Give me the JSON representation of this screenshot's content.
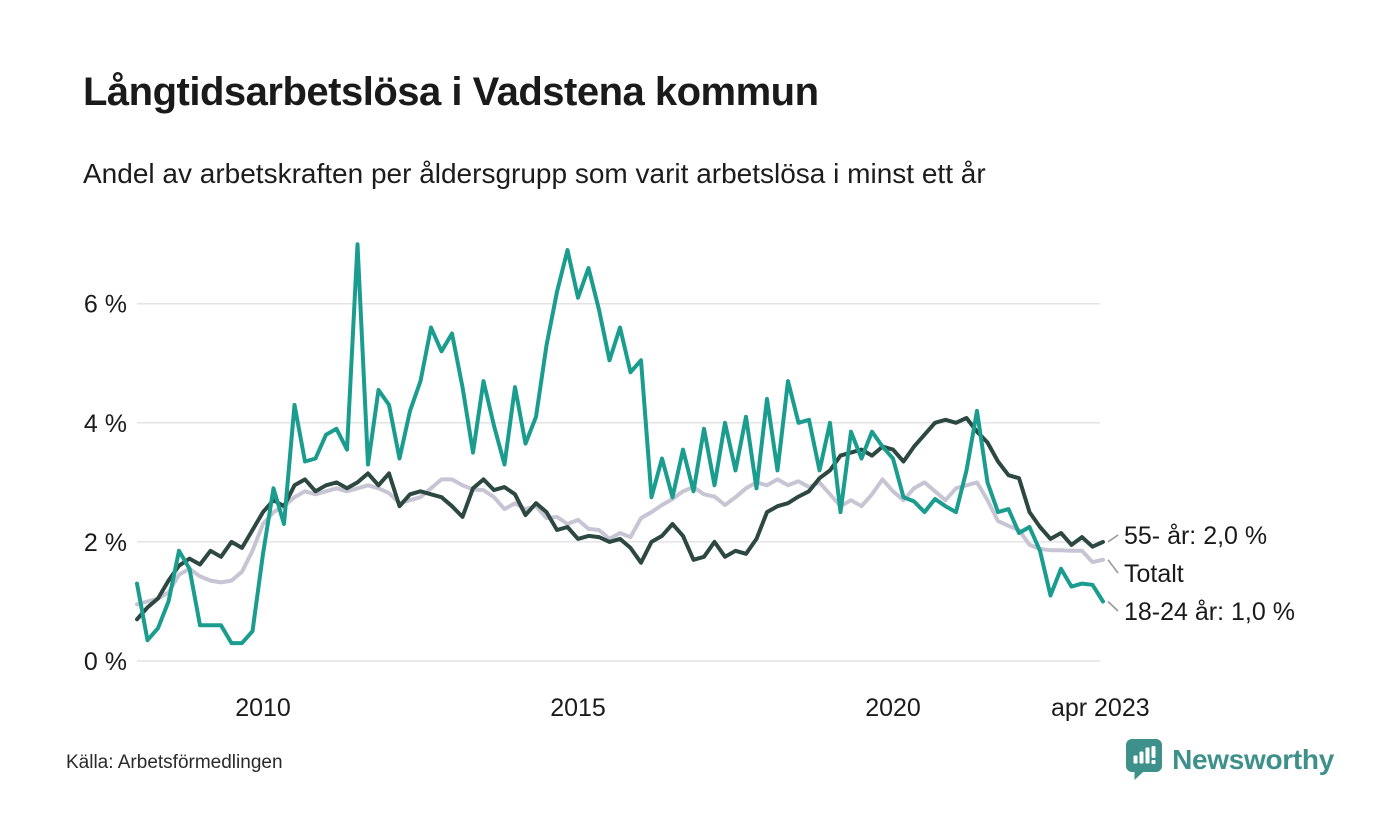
{
  "header": {
    "title": "Långtidsarbetslösa i Vadstena kommun",
    "subtitle": "Andel av arbetskraften per åldersgrupp som varit arbetslösa i minst ett år"
  },
  "footer": {
    "source": "Källa: Arbetsförmedlingen",
    "brand": "Newsworthy"
  },
  "colors": {
    "brand_teal": "#3e908a",
    "series_18_24": "#1a9d8e",
    "series_55": "#2c4841",
    "series_total": "#c7c5d3",
    "grid": "#e3e3e6",
    "axis_text": "#1b1b1b",
    "annotation_text": "#1a1a1a",
    "connector": "#999999"
  },
  "chart_data": {
    "type": "line",
    "title": "Långtidsarbetslösa i Vadstena kommun",
    "subtitle": "Andel av arbetskraften per åldersgrupp som varit arbetslösa i minst ett år",
    "unit": "%",
    "grid": true,
    "legend_position": "end-of-line-labels",
    "xlim": [
      2008.0,
      2023.333
    ],
    "ylim": [
      0,
      7.1
    ],
    "x_step_years": 0.1666667,
    "x_ticks": [
      {
        "value": 2010,
        "label": "2010"
      },
      {
        "value": 2015,
        "label": "2015"
      },
      {
        "value": 2020,
        "label": "2020"
      },
      {
        "value": 2023.29,
        "label": "apr 2023"
      }
    ],
    "y_ticks": [
      {
        "value": 0,
        "label": "0 %"
      },
      {
        "value": 2,
        "label": "2 %"
      },
      {
        "value": 4,
        "label": "4 %"
      },
      {
        "value": 6,
        "label": "6 %"
      }
    ],
    "grid_color": "#e3e3e6",
    "axis_text_color": "#1b1b1b",
    "series": [
      {
        "name": "Totalt",
        "color": "#c7c5d3",
        "values": [
          0.95,
          1.0,
          1.05,
          1.15,
          1.45,
          1.55,
          1.42,
          1.35,
          1.32,
          1.35,
          1.5,
          1.85,
          2.3,
          2.5,
          2.6,
          2.75,
          2.85,
          2.8,
          2.85,
          2.9,
          2.85,
          2.9,
          2.95,
          2.9,
          2.82,
          2.65,
          2.7,
          2.75,
          2.9,
          3.05,
          3.05,
          2.95,
          2.88,
          2.87,
          2.75,
          2.55,
          2.65,
          2.55,
          2.6,
          2.4,
          2.42,
          2.3,
          2.37,
          2.22,
          2.2,
          2.05,
          2.15,
          2.08,
          2.4,
          2.5,
          2.62,
          2.72,
          2.85,
          2.92,
          2.8,
          2.76,
          2.62,
          2.75,
          2.9,
          3.0,
          2.95,
          3.05,
          2.95,
          3.02,
          2.92,
          3.0,
          2.8,
          2.6,
          2.7,
          2.6,
          2.8,
          3.05,
          2.85,
          2.7,
          2.9,
          3.0,
          2.85,
          2.7,
          2.9,
          2.95,
          3.0,
          2.7,
          2.35,
          2.27,
          2.2,
          1.95,
          1.88,
          1.86,
          1.86,
          1.85,
          1.85,
          1.66,
          1.7
        ]
      },
      {
        "name": "55- år",
        "color": "#2c4841",
        "values": [
          0.7,
          0.9,
          1.05,
          1.35,
          1.6,
          1.72,
          1.62,
          1.85,
          1.75,
          2.0,
          1.9,
          2.2,
          2.5,
          2.7,
          2.6,
          2.95,
          3.05,
          2.85,
          2.95,
          3.0,
          2.9,
          3.0,
          3.15,
          2.95,
          3.15,
          2.6,
          2.8,
          2.85,
          2.8,
          2.75,
          2.6,
          2.42,
          2.9,
          3.05,
          2.87,
          2.92,
          2.8,
          2.45,
          2.65,
          2.5,
          2.2,
          2.25,
          2.05,
          2.1,
          2.08,
          2.0,
          2.05,
          1.9,
          1.65,
          2.0,
          2.1,
          2.3,
          2.1,
          1.7,
          1.75,
          2.0,
          1.75,
          1.85,
          1.8,
          2.05,
          2.5,
          2.6,
          2.65,
          2.76,
          2.85,
          3.07,
          3.2,
          3.45,
          3.5,
          3.55,
          3.45,
          3.6,
          3.55,
          3.35,
          3.6,
          3.8,
          4.0,
          4.05,
          4.0,
          4.08,
          3.85,
          3.67,
          3.35,
          3.12,
          3.07,
          2.5,
          2.25,
          2.05,
          2.15,
          1.95,
          2.08,
          1.92,
          2.0
        ]
      },
      {
        "name": "18-24 år",
        "color": "#1a9d8e",
        "values": [
          1.3,
          0.35,
          0.55,
          1.0,
          1.85,
          1.55,
          0.6,
          0.6,
          0.6,
          0.3,
          0.3,
          0.5,
          1.8,
          2.9,
          2.3,
          4.3,
          3.35,
          3.4,
          3.8,
          3.9,
          3.55,
          7.0,
          3.3,
          4.55,
          4.3,
          3.4,
          4.2,
          4.7,
          5.6,
          5.2,
          5.5,
          4.6,
          3.5,
          4.7,
          3.95,
          3.3,
          4.6,
          3.65,
          4.1,
          5.3,
          6.2,
          6.9,
          6.1,
          6.6,
          5.9,
          5.05,
          5.6,
          4.85,
          5.05,
          2.75,
          3.4,
          2.75,
          3.55,
          2.85,
          3.9,
          2.95,
          4.0,
          3.2,
          4.1,
          2.9,
          4.4,
          3.2,
          4.7,
          4.0,
          4.05,
          3.2,
          4.0,
          2.5,
          3.85,
          3.4,
          3.85,
          3.6,
          3.4,
          2.75,
          2.68,
          2.5,
          2.72,
          2.6,
          2.5,
          3.2,
          4.2,
          3.0,
          2.5,
          2.55,
          2.15,
          2.25,
          1.85,
          1.1,
          1.55,
          1.25,
          1.3,
          1.28,
          1.0
        ]
      }
    ],
    "annotations": [
      {
        "series": "55- år",
        "label": "55- år: 2,0 %"
      },
      {
        "series": "Totalt",
        "label": "Totalt"
      },
      {
        "series": "18-24 år",
        "label": "18-24 år: 1,0 %"
      }
    ]
  }
}
